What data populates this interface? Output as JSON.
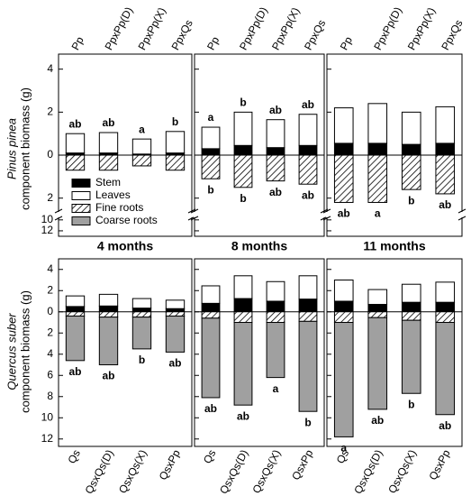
{
  "y_labels": [
    {
      "species": "Pinus pinea",
      "text": "component biomass (g)"
    },
    {
      "species": "Quercus suber",
      "text": "component biomass (g)"
    }
  ],
  "panel_titles": [
    "4 months",
    "8 months",
    "11 months"
  ],
  "legend": [
    {
      "name": "Stem",
      "color": "#000000"
    },
    {
      "name": "Leaves",
      "color": "#ffffff"
    },
    {
      "name": "Fine roots",
      "color": "#ffffff",
      "hatch": true
    },
    {
      "name": "Coarse roots",
      "color": "#a0a0a0"
    }
  ],
  "chart_data": [
    {
      "type": "bar",
      "categories": [
        "Pp",
        "PpxPp(D)",
        "PpxPp(X)",
        "PpxQs"
      ],
      "ylim": [
        -13,
        4.7
      ],
      "axis_break": [
        -2.6,
        -9.7
      ],
      "yticks": [
        4,
        2,
        0,
        {
          "value": -2,
          "label": "2"
        },
        {
          "value": -10,
          "label": "10"
        },
        {
          "value": -12,
          "label": "12"
        }
      ],
      "series": [
        {
          "values": [
            0.1,
            0.1,
            0.05,
            0.1
          ]
        },
        {
          "values": [
            0.9,
            0.95,
            0.7,
            1.0
          ]
        },
        {
          "values": [
            -0.7,
            -0.7,
            -0.5,
            -0.7
          ]
        }
      ],
      "letters_above": [
        "ab",
        "ab",
        "a",
        "b"
      ]
    },
    {
      "type": "bar",
      "categories": [
        "Pp",
        "PpxPp(D)",
        "PpxPp(X)",
        "PpxQs"
      ],
      "ylim": [
        -13,
        4.7
      ],
      "axis_break": [
        -2.6,
        -9.7
      ],
      "yticks": [
        4,
        2,
        0,
        {
          "value": -2,
          "label": "2"
        },
        {
          "value": -10,
          "label": "10"
        },
        {
          "value": -12,
          "label": "12"
        }
      ],
      "series": [
        {
          "values": [
            0.3,
            0.45,
            0.35,
            0.45
          ]
        },
        {
          "values": [
            1.0,
            1.55,
            1.3,
            1.45
          ]
        },
        {
          "values": [
            -1.1,
            -1.5,
            -1.2,
            -1.35
          ]
        }
      ],
      "letters_above": [
        "a",
        "b",
        "ab",
        "ab"
      ],
      "letters_below": [
        "b",
        "b",
        "ab",
        "ab"
      ]
    },
    {
      "type": "bar",
      "categories": [
        "Pp",
        "PpxPp(D)",
        "PpxPp(X)",
        "PpxQs"
      ],
      "ylim": [
        -13,
        4.7
      ],
      "axis_break": [
        -2.6,
        -9.7
      ],
      "yticks": [
        4,
        2,
        0,
        {
          "value": -2,
          "label": "2"
        },
        {
          "value": -10,
          "label": "10"
        },
        {
          "value": -12,
          "label": "12"
        }
      ],
      "series": [
        {
          "values": [
            0.55,
            0.55,
            0.5,
            0.55
          ]
        },
        {
          "values": [
            1.65,
            1.85,
            1.5,
            1.7
          ]
        },
        {
          "values": [
            -2.2,
            -2.2,
            -1.6,
            -1.8
          ]
        }
      ],
      "letters_below": [
        "ab",
        "a",
        "b",
        "ab"
      ]
    },
    {
      "type": "bar",
      "categories": [
        "Qs",
        "QsxQs(D)",
        "QsxQs(X)",
        "QsxPp"
      ],
      "ylim": [
        -12.7,
        5.0
      ],
      "yticks": [
        4,
        2,
        0,
        {
          "value": -2,
          "label": "2"
        },
        {
          "value": -4,
          "label": "4"
        },
        {
          "value": -6,
          "label": "6"
        },
        {
          "value": -8,
          "label": "8"
        },
        {
          "value": -10,
          "label": "10"
        },
        {
          "value": -12,
          "label": "12"
        }
      ],
      "series": [
        {
          "values": [
            0.5,
            0.55,
            0.35,
            0.3
          ]
        },
        {
          "values": [
            1.0,
            1.1,
            0.9,
            0.8
          ]
        },
        {
          "values": [
            -0.4,
            -0.5,
            -0.5,
            -0.4
          ]
        },
        {
          "values": [
            -4.2,
            -4.5,
            -3.0,
            -3.4
          ]
        }
      ],
      "letters_below": [
        "ab",
        "ab",
        "b",
        "ab"
      ]
    },
    {
      "type": "bar",
      "categories": [
        "Qs",
        "QsxQs(D)",
        "QsxQs(X)",
        "QsxPp"
      ],
      "ylim": [
        -12.7,
        5.0
      ],
      "yticks": [
        4,
        2,
        0,
        {
          "value": -2,
          "label": "2"
        },
        {
          "value": -4,
          "label": "4"
        },
        {
          "value": -6,
          "label": "6"
        },
        {
          "value": -8,
          "label": "8"
        },
        {
          "value": -10,
          "label": "10"
        },
        {
          "value": -12,
          "label": "12"
        }
      ],
      "series": [
        {
          "values": [
            0.8,
            1.25,
            1.0,
            1.2
          ]
        },
        {
          "values": [
            1.65,
            2.15,
            1.85,
            2.2
          ]
        },
        {
          "values": [
            -0.6,
            -1.0,
            -1.0,
            -0.9
          ]
        },
        {
          "values": [
            -7.5,
            -7.8,
            -5.2,
            -8.5
          ]
        }
      ],
      "letters_below": [
        "ab",
        "ab",
        "a",
        "b"
      ]
    },
    {
      "type": "bar",
      "categories": [
        "Qs",
        "QsxQs(D)",
        "QsxQs(X)",
        "QsxPp"
      ],
      "ylim": [
        -12.7,
        5.0
      ],
      "yticks": [
        4,
        2,
        0,
        {
          "value": -2,
          "label": "2"
        },
        {
          "value": -4,
          "label": "4"
        },
        {
          "value": -6,
          "label": "6"
        },
        {
          "value": -8,
          "label": "8"
        },
        {
          "value": -10,
          "label": "10"
        },
        {
          "value": -12,
          "label": "12"
        }
      ],
      "series": [
        {
          "values": [
            1.0,
            0.7,
            0.9,
            0.9
          ]
        },
        {
          "values": [
            2.0,
            1.4,
            1.7,
            1.9
          ]
        },
        {
          "values": [
            -1.0,
            -0.55,
            -0.8,
            -1.0
          ]
        },
        {
          "values": [
            -10.8,
            -8.65,
            -6.9,
            -8.7
          ]
        }
      ],
      "letters_below": [
        "a",
        "ab",
        "b",
        "ab"
      ]
    }
  ]
}
